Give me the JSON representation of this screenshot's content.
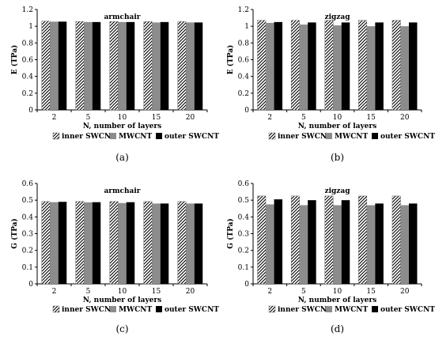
{
  "colors": {
    "mwcnt": "#8c8c8c",
    "outer": "#000000",
    "inner_stripe": "#000000"
  },
  "chart_data": [
    {
      "type": "bar",
      "label": "(a)",
      "title": "armchair",
      "xlabel": "N, number of layers",
      "ylabel": "E (TPa)",
      "categories": [
        "2",
        "5",
        "10",
        "15",
        "20"
      ],
      "ylim": [
        0,
        1.2
      ],
      "yticks": [
        "0",
        "0.2",
        "0.4",
        "0.6",
        "0.8",
        "1",
        "1.2"
      ],
      "grid": false,
      "legend_position": "bottom",
      "series": [
        {
          "name": "inner SWCNT",
          "values": [
            1.06,
            1.055,
            1.055,
            1.055,
            1.055
          ]
        },
        {
          "name": "MWCNT",
          "values": [
            1.055,
            1.05,
            1.05,
            1.045,
            1.045
          ]
        },
        {
          "name": "outer SWCNT",
          "values": [
            1.055,
            1.05,
            1.05,
            1.05,
            1.045
          ]
        }
      ]
    },
    {
      "type": "bar",
      "label": "(b)",
      "title": "zigzag",
      "xlabel": "N, number of layers",
      "ylabel": "E (TPa)",
      "categories": [
        "2",
        "5",
        "10",
        "15",
        "20"
      ],
      "ylim": [
        0,
        1.2
      ],
      "yticks": [
        "0",
        "0.2",
        "0.4",
        "0.6",
        "0.8",
        "1",
        "1.2"
      ],
      "grid": false,
      "legend_position": "bottom",
      "series": [
        {
          "name": "inner SWCNT",
          "values": [
            1.07,
            1.07,
            1.07,
            1.07,
            1.07
          ]
        },
        {
          "name": "MWCNT",
          "values": [
            1.04,
            1.02,
            1.01,
            1.0,
            1.0
          ]
        },
        {
          "name": "outer SWCNT",
          "values": [
            1.05,
            1.045,
            1.045,
            1.045,
            1.045
          ]
        }
      ]
    },
    {
      "type": "bar",
      "label": "(c)",
      "title": "armchair",
      "xlabel": "N, number of layers",
      "ylabel": "G (TPa)",
      "categories": [
        "2",
        "5",
        "10",
        "15",
        "20"
      ],
      "ylim": [
        0,
        0.6
      ],
      "yticks": [
        "0",
        "0.1",
        "0.2",
        "0.3",
        "0.4",
        "0.5",
        "0.6"
      ],
      "grid": false,
      "legend_position": "bottom",
      "series": [
        {
          "name": "inner SWCNT",
          "values": [
            0.492,
            0.492,
            0.492,
            0.492,
            0.492
          ]
        },
        {
          "name": "MWCNT",
          "values": [
            0.488,
            0.487,
            0.483,
            0.48,
            0.48
          ]
        },
        {
          "name": "outer SWCNT",
          "values": [
            0.49,
            0.488,
            0.488,
            0.48,
            0.48
          ]
        }
      ]
    },
    {
      "type": "bar",
      "label": "(d)",
      "title": "zigzag",
      "xlabel": "N, number of layers",
      "ylabel": "G (TPa)",
      "categories": [
        "2",
        "5",
        "10",
        "15",
        "20"
      ],
      "ylim": [
        0,
        0.6
      ],
      "yticks": [
        "0",
        "0.1",
        "0.2",
        "0.3",
        "0.4",
        "0.5",
        "0.6"
      ],
      "grid": false,
      "legend_position": "bottom",
      "series": [
        {
          "name": "inner SWCNT",
          "values": [
            0.525,
            0.525,
            0.525,
            0.525,
            0.525
          ]
        },
        {
          "name": "MWCNT",
          "values": [
            0.475,
            0.47,
            0.47,
            0.47,
            0.47
          ]
        },
        {
          "name": "outer SWCNT",
          "values": [
            0.505,
            0.5,
            0.5,
            0.48,
            0.48
          ]
        }
      ]
    }
  ]
}
